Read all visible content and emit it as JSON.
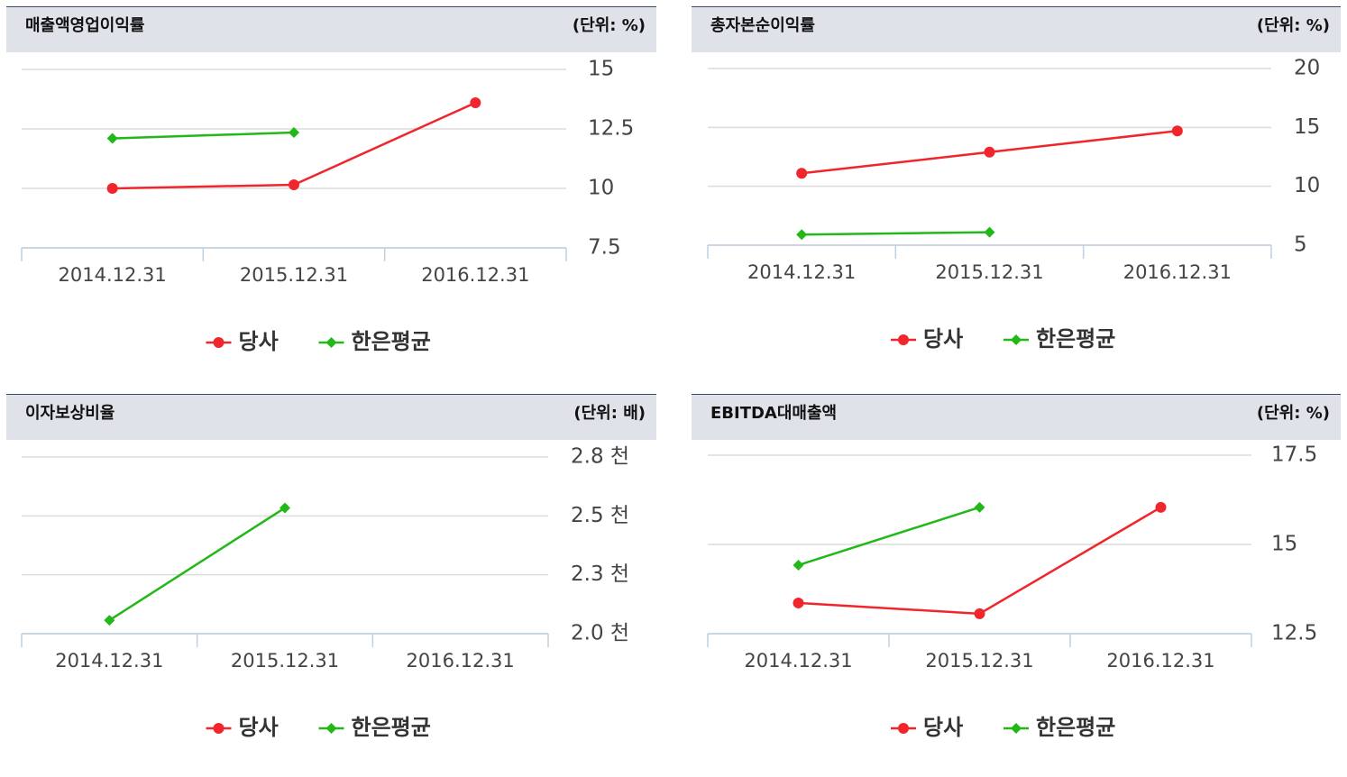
{
  "chart_data": [
    {
      "type": "line",
      "title": "매출액영업이익률",
      "subtitle": "(단위: %)",
      "categories": [
        "2014.12.31",
        "2015.12.31",
        "2016.12.31"
      ],
      "series": [
        {
          "name": "당사",
          "color": "#f0262c",
          "values": [
            10.0,
            10.15,
            13.6
          ]
        },
        {
          "name": "한은평균",
          "color": "#22b818",
          "values": [
            12.1,
            12.35,
            null
          ]
        }
      ],
      "ylim": [
        7.5,
        15
      ],
      "yticks": [
        7.5,
        10,
        12.5,
        15
      ],
      "grid": true
    },
    {
      "type": "line",
      "title": "총자본순이익률",
      "subtitle": "(단위: %)",
      "categories": [
        "2014.12.31",
        "2015.12.31",
        "2016.12.31"
      ],
      "series": [
        {
          "name": "당사",
          "color": "#f0262c",
          "values": [
            11.1,
            12.9,
            14.7
          ]
        },
        {
          "name": "한은평균",
          "color": "#22b818",
          "values": [
            5.9,
            6.1,
            null
          ]
        }
      ],
      "ylim": [
        5,
        20
      ],
      "yticks": [
        5,
        10,
        15,
        20
      ],
      "grid": true
    },
    {
      "type": "line",
      "title": "이자보상비율",
      "subtitle": "(단위: 배)",
      "categories": [
        "2014.12.31",
        "2015.12.31",
        "2016.12.31"
      ],
      "series": [
        {
          "name": "당사",
          "color": "#f0262c",
          "values": [
            null,
            null,
            null
          ]
        },
        {
          "name": "한은평균",
          "color": "#22b818",
          "values": [
            2057,
            2534,
            null
          ]
        }
      ],
      "ylim": [
        2000,
        2750
      ],
      "yticks": [
        {
          "value": 2000,
          "label": "2.0 천"
        },
        {
          "value": 2250,
          "label": "2.3 천"
        },
        {
          "value": 2500,
          "label": "2.5 천"
        },
        {
          "value": 2750,
          "label": "2.8 천"
        }
      ],
      "grid": true
    },
    {
      "type": "line",
      "title": "EBITDA대매출액",
      "subtitle": "(단위: %)",
      "categories": [
        "2014.12.31",
        "2015.12.31",
        "2016.12.31"
      ],
      "series": [
        {
          "name": "당사",
          "color": "#f0262c",
          "values": [
            13.36,
            13.06,
            16.04
          ]
        },
        {
          "name": "한은평균",
          "color": "#22b818",
          "values": [
            14.42,
            16.04,
            null
          ]
        }
      ],
      "ylim": [
        12.5,
        17.5
      ],
      "yticks": [
        12.5,
        15,
        17.5
      ],
      "grid": true
    }
  ]
}
